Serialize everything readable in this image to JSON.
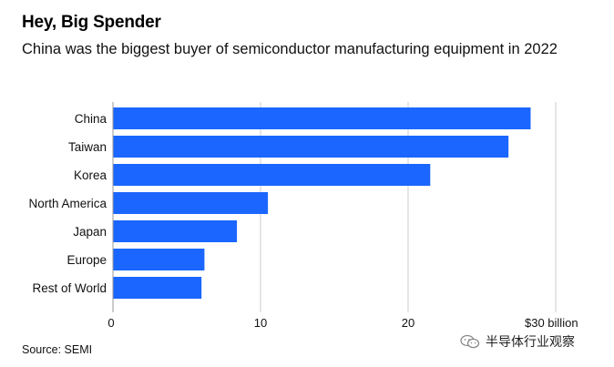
{
  "header": {
    "title": "Hey, Big Spender",
    "subtitle": "China was the biggest buyer of semiconductor manufacturing equipment in 2022"
  },
  "footer": {
    "source": "Source: SEMI"
  },
  "watermark": {
    "text": "半导体行业观察",
    "icon": "wechat-icon"
  },
  "colors": {
    "bar": "#1a66ff",
    "grid": "#cccccc"
  },
  "chart_data": {
    "type": "bar",
    "orientation": "horizontal",
    "title": "Hey, Big Spender",
    "subtitle": "China was the biggest buyer of semiconductor manufacturing equipment in 2022",
    "categories": [
      "China",
      "Taiwan",
      "Korea",
      "North America",
      "Japan",
      "Europe",
      "Rest of World"
    ],
    "values": [
      28.3,
      26.8,
      21.5,
      10.5,
      8.4,
      6.2,
      6.0
    ],
    "unit": "$ billion",
    "xlim": [
      0,
      30
    ],
    "xticks": [
      0,
      10,
      20,
      30
    ],
    "xtick_labels": [
      "0",
      "10",
      "20",
      "$30 billion"
    ],
    "grid": true,
    "legend": "none"
  }
}
